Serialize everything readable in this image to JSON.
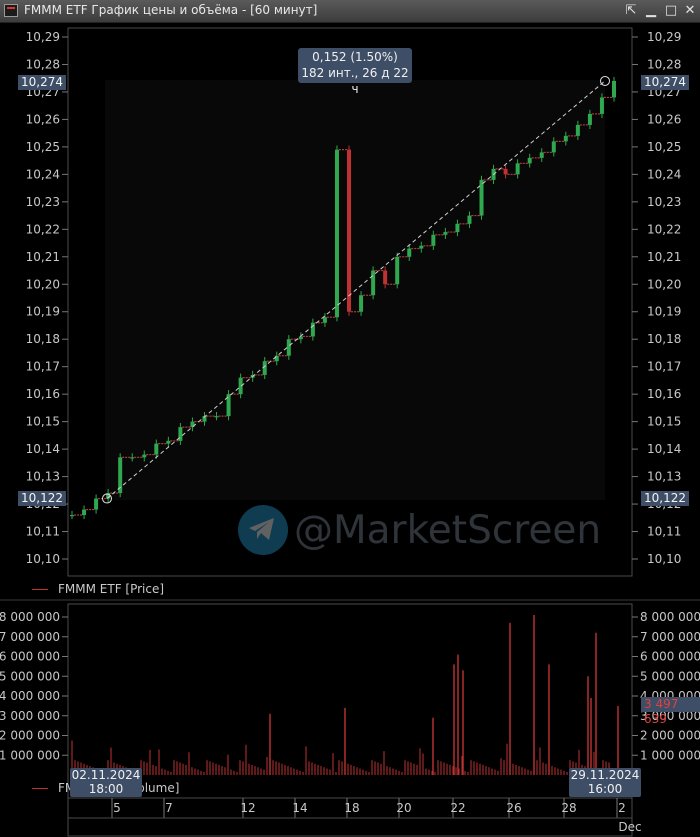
{
  "window": {
    "title": "FMMM ETF График цены и объёма - [60 минут]",
    "buttons": {
      "float": "⇱",
      "minimize": "▁",
      "maximize": "□",
      "close": "✕"
    }
  },
  "legends": {
    "price": "FMMM ETF [Price]",
    "volume": "FMMM ETF [Volume]"
  },
  "watermark": {
    "text": "@MarketScreen",
    "icon": "telegram-icon"
  },
  "measure": {
    "tooltip_line1": "0,152 (1.50%)",
    "tooltip_line2": "182 инт., 26 д 22 ч",
    "start_price": "10,122",
    "end_price": "10,274",
    "start_date": "02.11.2024",
    "start_time": "18:00",
    "end_date": "29.11.2024",
    "end_time": "16:00"
  },
  "volume_last_value": "3 497 639",
  "colors": {
    "up": "#2fa84f",
    "down": "#c03232",
    "volume": "#c03232",
    "label_bg": "#3e4e66"
  },
  "chart_data": [
    {
      "type": "candlestick",
      "series": [
        {
          "name": "FMMM ETF [Price]"
        }
      ],
      "ylim": [
        10.1,
        10.29
      ],
      "y_ticks": [
        "10,10",
        "10,11",
        "10,12",
        "10,13",
        "10,14",
        "10,15",
        "10,16",
        "10,17",
        "10,18",
        "10,19",
        "10,20",
        "10,21",
        "10,22",
        "10,23",
        "10,24",
        "10,25",
        "10,26",
        "10,27",
        "10,28",
        "10,29"
      ],
      "x_ticks": [
        "5",
        "7",
        "12",
        "14",
        "18",
        "20",
        "22",
        "26",
        "28",
        "2"
      ],
      "x_month_label": "Dec",
      "prices_approx": [
        10.116,
        10.118,
        10.122,
        10.124,
        10.137,
        10.137,
        10.138,
        10.142,
        10.143,
        10.148,
        10.15,
        10.152,
        10.152,
        10.16,
        10.166,
        10.167,
        10.172,
        10.174,
        10.18,
        10.181,
        10.186,
        10.188,
        10.249,
        10.19,
        10.196,
        10.205,
        10.2,
        10.21,
        10.213,
        10.214,
        10.218,
        10.219,
        10.222,
        10.225,
        10.238,
        10.242,
        10.24,
        10.244,
        10.246,
        10.248,
        10.252,
        10.254,
        10.258,
        10.262,
        10.268,
        10.274
      ]
    },
    {
      "type": "bar",
      "series": [
        {
          "name": "FMMM ETF [Volume]"
        }
      ],
      "ylim": [
        0,
        8000000
      ],
      "y_ticks": [
        "1 000 000",
        "2 000 000",
        "3 000 000",
        "4 000 000",
        "5 000 000",
        "6 000 000",
        "7 000 000",
        "8 000 000"
      ],
      "notable_values": [
        3497639,
        8100000,
        7700000,
        7200000,
        6100000,
        5600000,
        5600000,
        5300000,
        5000000,
        3900000,
        3400000,
        3100000,
        2900000
      ]
    }
  ]
}
